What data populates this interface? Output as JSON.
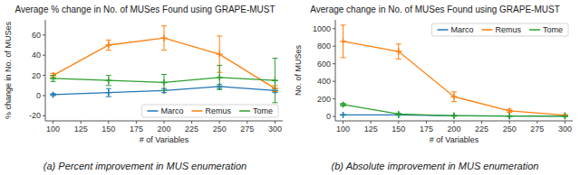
{
  "chart_data": [
    {
      "type": "line",
      "title": "Average % change in No. of MUSes Found using GRAPE-MUST",
      "x_label": "# of Variables",
      "y_label": "% change in No. of MUSes",
      "caption": "(a) Percent improvement in MUS enumeration",
      "x": [
        100,
        150,
        200,
        250,
        300
      ],
      "xlim": [
        93,
        307
      ],
      "xticks": [
        100,
        125,
        150,
        175,
        200,
        225,
        250,
        275,
        300
      ],
      "ylim": [
        -25,
        75
      ],
      "yticks": [
        -20,
        0,
        20,
        40,
        60
      ],
      "grid": false,
      "legend": "lower right",
      "marker": "plus",
      "series": [
        {
          "name": "Marco",
          "color": "#1f77b4",
          "values": [
            1,
            3,
            5,
            9,
            5
          ],
          "errors": [
            1,
            4,
            2,
            2,
            2
          ]
        },
        {
          "name": "Remus",
          "color": "#ff7f0e",
          "values": [
            20,
            50,
            57,
            41,
            7
          ],
          "errors": [
            2,
            5,
            12,
            18,
            3
          ]
        },
        {
          "name": "Tome",
          "color": "#2ca02c",
          "values": [
            17,
            15,
            13,
            18,
            15
          ],
          "errors": [
            3,
            5,
            8,
            12,
            22
          ]
        }
      ]
    },
    {
      "type": "line",
      "title": "Average change in No. of MUSes Found using GRAPE-MUST",
      "x_label": "# of Variables",
      "y_label": "No. of MUSes",
      "caption": "(b) Absolute improvement in MUS enumeration",
      "x": [
        100,
        150,
        200,
        250,
        300
      ],
      "xlim": [
        93,
        307
      ],
      "xticks": [
        100,
        125,
        150,
        175,
        200,
        225,
        250,
        275,
        300
      ],
      "ylim": [
        -50,
        1100
      ],
      "yticks": [
        0,
        200,
        400,
        600,
        800,
        1000
      ],
      "grid": false,
      "legend": "upper right",
      "marker": "plus",
      "series": [
        {
          "name": "Marco",
          "color": "#1f77b4",
          "values": [
            18,
            18,
            8,
            5,
            5
          ],
          "errors": [
            4,
            4,
            4,
            2,
            2
          ]
        },
        {
          "name": "Remus",
          "color": "#ff7f0e",
          "values": [
            855,
            740,
            225,
            65,
            15
          ],
          "errors": [
            185,
            85,
            55,
            18,
            5
          ]
        },
        {
          "name": "Tome",
          "color": "#2ca02c",
          "values": [
            135,
            28,
            8,
            5,
            3
          ],
          "errors": [
            15,
            8,
            4,
            2,
            2
          ]
        }
      ]
    }
  ]
}
